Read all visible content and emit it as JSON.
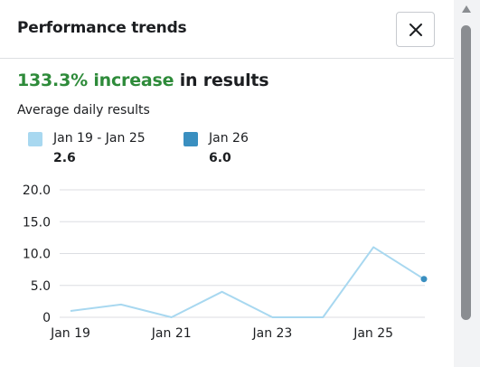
{
  "panel": {
    "title": "Performance trends",
    "headline_accent": "133.3% increase",
    "headline_rest": " in results",
    "subtitle": "Average daily results"
  },
  "legend": [
    {
      "label": "Jan 19 - Jan 25",
      "value": "2.6",
      "color": "#a8d8f0"
    },
    {
      "label": "Jan 26",
      "value": "6.0",
      "color": "#3a8fc0"
    }
  ],
  "icons": {
    "close": "close-icon",
    "scroll_up": "chevron-up-icon"
  },
  "chart_data": {
    "type": "line",
    "x": [
      "Jan 19",
      "Jan 20",
      "Jan 21",
      "Jan 22",
      "Jan 23",
      "Jan 24",
      "Jan 25",
      "Jan 26"
    ],
    "xticks": [
      "Jan 19",
      "Jan 21",
      "Jan 23",
      "Jan 25"
    ],
    "yticks": [
      "0",
      "5.0",
      "10.0",
      "15.0",
      "20.0"
    ],
    "ylim": [
      0,
      20
    ],
    "series": [
      {
        "values": [
          1,
          2,
          0,
          4,
          0,
          0,
          11,
          6
        ],
        "color": "#a8d8f0",
        "highlight_last": true,
        "highlight_color": "#3a8fc0"
      }
    ],
    "grid": true
  }
}
